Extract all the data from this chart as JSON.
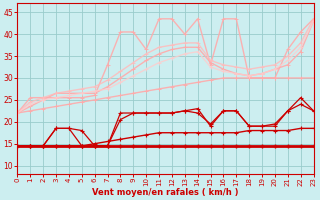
{
  "xlabel": "Vent moyen/en rafales ( km/h )",
  "xlim": [
    0,
    23
  ],
  "ylim": [
    8,
    47
  ],
  "yticks": [
    10,
    15,
    20,
    25,
    30,
    35,
    40,
    45
  ],
  "xticks": [
    0,
    1,
    2,
    3,
    4,
    5,
    6,
    7,
    8,
    9,
    10,
    11,
    12,
    13,
    14,
    15,
    16,
    17,
    18,
    19,
    20,
    21,
    22,
    23
  ],
  "bg_color": "#cceef0",
  "grid_color": "#99cccc",
  "series": [
    {
      "x": [
        0,
        1,
        2,
        3,
        4,
        5,
        6,
        7,
        8,
        9,
        10,
        11,
        12,
        13,
        14,
        15,
        16,
        17,
        18,
        19,
        20,
        21,
        22,
        23
      ],
      "y": [
        14.5,
        14.5,
        14.5,
        14.5,
        14.5,
        14.5,
        14.5,
        14.5,
        14.5,
        14.5,
        14.5,
        14.5,
        14.5,
        14.5,
        14.5,
        14.5,
        14.5,
        14.5,
        14.5,
        14.5,
        14.5,
        14.5,
        14.5,
        14.5
      ],
      "color": "#cc0000",
      "lw": 2.0,
      "marker": "+",
      "ms": 3.5,
      "alpha": 1.0,
      "mew": 1.0
    },
    {
      "x": [
        0,
        1,
        2,
        3,
        4,
        5,
        6,
        7,
        8,
        9,
        10,
        11,
        12,
        13,
        14,
        15,
        16,
        17,
        18,
        19,
        20,
        21,
        22,
        23
      ],
      "y": [
        14.5,
        14.5,
        14.5,
        14.5,
        14.5,
        14.5,
        15.0,
        15.5,
        16.0,
        16.5,
        17.0,
        17.5,
        17.5,
        17.5,
        17.5,
        17.5,
        17.5,
        17.5,
        18.0,
        18.0,
        18.0,
        18.0,
        18.5,
        18.5
      ],
      "color": "#cc0000",
      "lw": 1.0,
      "marker": "+",
      "ms": 3,
      "alpha": 1.0,
      "mew": 0.8
    },
    {
      "x": [
        0,
        1,
        2,
        3,
        4,
        5,
        6,
        7,
        8,
        9,
        10,
        11,
        12,
        13,
        14,
        15,
        16,
        17,
        18,
        19,
        20,
        21,
        22,
        23
      ],
      "y": [
        14.5,
        14.5,
        14.5,
        18.5,
        18.5,
        14.5,
        14.5,
        14.5,
        22.0,
        22.0,
        22.0,
        22.0,
        22.0,
        22.5,
        22.0,
        19.5,
        22.5,
        22.5,
        19.0,
        19.0,
        19.0,
        22.5,
        25.5,
        22.5
      ],
      "color": "#cc0000",
      "lw": 0.9,
      "marker": "+",
      "ms": 3,
      "alpha": 1.0,
      "mew": 0.8
    },
    {
      "x": [
        0,
        1,
        2,
        3,
        4,
        5,
        6,
        7,
        8,
        9,
        10,
        11,
        12,
        13,
        14,
        15,
        16,
        17,
        18,
        19,
        20,
        21,
        22,
        23
      ],
      "y": [
        14.5,
        14.5,
        14.5,
        18.5,
        18.5,
        18.0,
        14.5,
        14.5,
        20.5,
        22.0,
        22.0,
        22.0,
        22.0,
        22.5,
        23.0,
        19.0,
        22.5,
        22.5,
        19.0,
        19.0,
        19.5,
        22.5,
        24.0,
        22.5
      ],
      "color": "#cc0000",
      "lw": 0.9,
      "marker": "+",
      "ms": 3,
      "alpha": 1.0,
      "mew": 0.8
    },
    {
      "x": [
        0,
        1,
        2,
        3,
        4,
        5,
        6,
        7,
        8,
        9,
        10,
        11,
        12,
        13,
        14,
        15,
        16,
        17,
        18,
        19,
        20,
        21,
        22,
        23
      ],
      "y": [
        22.0,
        22.5,
        23.0,
        23.5,
        24.0,
        24.5,
        25.0,
        25.5,
        26.0,
        26.5,
        27.0,
        27.5,
        28.0,
        28.5,
        29.0,
        29.5,
        30.0,
        30.0,
        30.0,
        30.0,
        30.0,
        30.0,
        30.0,
        30.0
      ],
      "color": "#ffaaaa",
      "lw": 1.0,
      "marker": "+",
      "ms": 3,
      "alpha": 0.9,
      "mew": 0.7
    },
    {
      "x": [
        0,
        1,
        2,
        3,
        4,
        5,
        6,
        7,
        8,
        9,
        10,
        11,
        12,
        13,
        14,
        15,
        16,
        17,
        18,
        19,
        20,
        21,
        22,
        23
      ],
      "y": [
        22.0,
        23.5,
        25.0,
        26.5,
        26.5,
        26.5,
        26.5,
        28.0,
        30.0,
        32.0,
        34.0,
        35.5,
        36.5,
        37.0,
        37.0,
        33.5,
        32.0,
        31.0,
        30.5,
        31.0,
        32.0,
        33.0,
        36.0,
        43.0
      ],
      "color": "#ffaaaa",
      "lw": 1.0,
      "marker": "+",
      "ms": 3,
      "alpha": 0.9,
      "mew": 0.7
    },
    {
      "x": [
        0,
        1,
        2,
        3,
        4,
        5,
        6,
        7,
        8,
        9,
        10,
        11,
        12,
        13,
        14,
        15,
        16,
        17,
        18,
        19,
        20,
        21,
        22,
        23
      ],
      "y": [
        22.0,
        25.5,
        25.5,
        25.5,
        25.5,
        25.5,
        26.0,
        33.0,
        40.5,
        40.5,
        36.5,
        43.5,
        43.5,
        40.0,
        43.5,
        33.0,
        43.5,
        43.5,
        30.0,
        30.0,
        30.0,
        36.5,
        40.5,
        43.5
      ],
      "color": "#ffaaaa",
      "lw": 1.0,
      "marker": "+",
      "ms": 3,
      "alpha": 0.9,
      "mew": 0.7
    },
    {
      "x": [
        0,
        1,
        2,
        3,
        4,
        5,
        6,
        7,
        8,
        9,
        10,
        11,
        12,
        13,
        14,
        15,
        16,
        17,
        18,
        19,
        20,
        21,
        22,
        23
      ],
      "y": [
        22.0,
        24.5,
        25.5,
        26.5,
        27.0,
        27.5,
        28.0,
        29.5,
        31.5,
        33.5,
        35.5,
        37.0,
        37.5,
        38.0,
        38.0,
        34.0,
        33.0,
        32.5,
        32.0,
        32.5,
        33.0,
        35.0,
        38.0,
        43.5
      ],
      "color": "#ffbbbb",
      "lw": 1.0,
      "marker": "+",
      "ms": 3,
      "alpha": 0.85,
      "mew": 0.7
    },
    {
      "x": [
        0,
        1,
        2,
        3,
        4,
        5,
        6,
        7,
        8,
        9,
        10,
        11,
        12,
        13,
        14,
        15,
        16,
        17,
        18,
        19,
        20,
        21,
        22,
        23
      ],
      "y": [
        22.0,
        24.0,
        25.0,
        25.5,
        26.0,
        26.5,
        27.0,
        27.5,
        29.0,
        30.5,
        32.0,
        33.5,
        34.5,
        35.5,
        36.0,
        32.5,
        31.5,
        31.0,
        30.5,
        31.0,
        32.0,
        34.0,
        37.0,
        43.0
      ],
      "color": "#ffcccc",
      "lw": 1.0,
      "marker": "+",
      "ms": 3,
      "alpha": 0.8,
      "mew": 0.7
    }
  ]
}
